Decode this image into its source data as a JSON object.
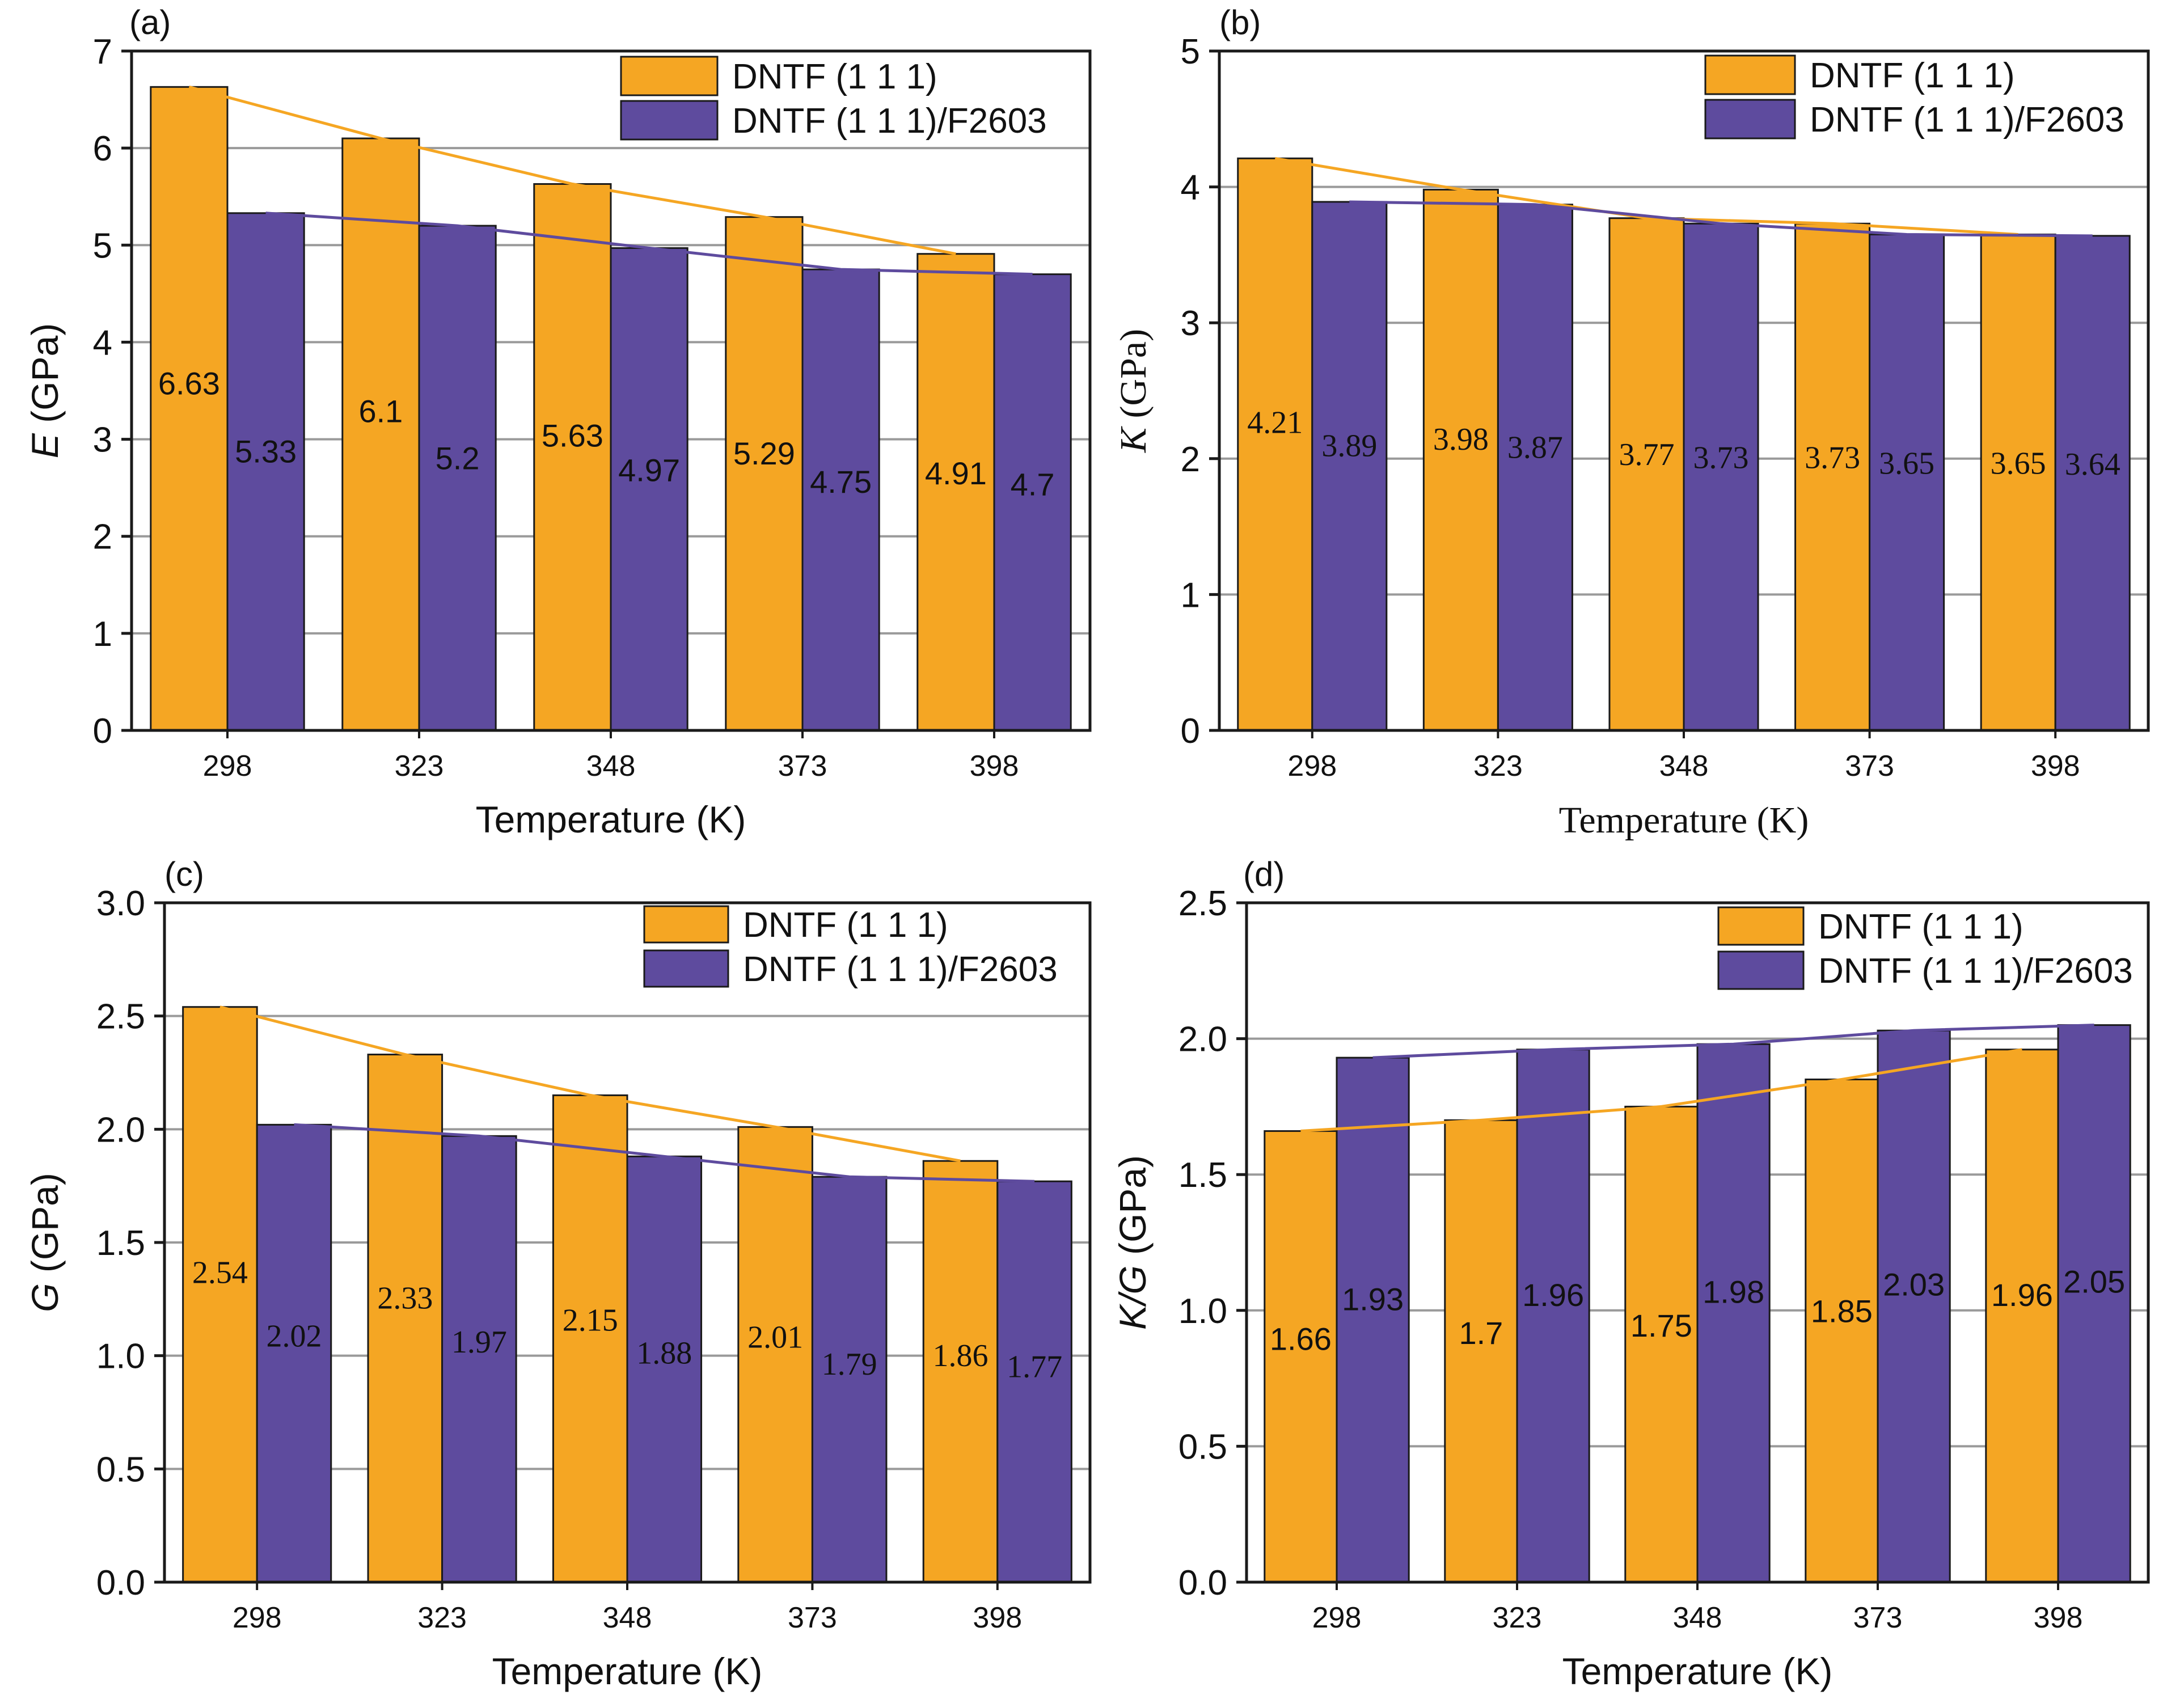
{
  "chart_data": [
    {
      "type": "bar",
      "panel_label": "(a)",
      "title": "",
      "categories": [
        "298",
        "323",
        "348",
        "373",
        "398"
      ],
      "series": [
        {
          "name": "DNTF (1 1 1)",
          "values": [
            6.63,
            6.1,
            5.63,
            5.29,
            4.91
          ],
          "labels": [
            "6.63",
            "6.1",
            "5.63",
            "5.29",
            "4.91"
          ],
          "color": "#F5A623"
        },
        {
          "name": "DNTF (1 1 1)/F2603",
          "values": [
            5.33,
            5.2,
            4.97,
            4.75,
            4.7
          ],
          "labels": [
            "5.33",
            "5.2",
            "4.97",
            "4.75",
            "4.7"
          ],
          "color": "#5E4B9E"
        }
      ],
      "ylabel_italic": "E",
      "ylabel_unit": " (GPa)",
      "xlabel": "Temperature (K)",
      "ylim": [
        0,
        7
      ],
      "yticks": [
        "0",
        "1",
        "2",
        "3",
        "4",
        "5",
        "6",
        "7"
      ],
      "grid": true,
      "legend": "top-right",
      "label_font": "sans"
    },
    {
      "type": "bar",
      "panel_label": "(b)",
      "title": "",
      "categories": [
        "298",
        "323",
        "348",
        "373",
        "398"
      ],
      "series": [
        {
          "name": "DNTF (1 1 1)",
          "values": [
            4.21,
            3.98,
            3.77,
            3.73,
            3.65
          ],
          "labels": [
            "4.21",
            "3.98",
            "3.77",
            "3.73",
            "3.65"
          ],
          "color": "#F5A623"
        },
        {
          "name": "DNTF (1 1 1)/F2603",
          "values": [
            3.89,
            3.87,
            3.73,
            3.65,
            3.64
          ],
          "labels": [
            "3.89",
            "3.87",
            "3.73",
            "3.65",
            "3.64"
          ],
          "color": "#5E4B9E"
        }
      ],
      "ylabel_italic": "K",
      "ylabel_unit": " (GPa)",
      "xlabel": "Temperature (K)",
      "ylim": [
        0,
        5
      ],
      "yticks": [
        "0",
        "1",
        "2",
        "3",
        "4",
        "5"
      ],
      "grid": true,
      "legend": "top-right",
      "label_font": "serif"
    },
    {
      "type": "bar",
      "panel_label": "(c)",
      "title": "",
      "categories": [
        "298",
        "323",
        "348",
        "373",
        "398"
      ],
      "series": [
        {
          "name": "DNTF (1 1 1)",
          "values": [
            2.54,
            2.33,
            2.15,
            2.01,
            1.86
          ],
          "labels": [
            "2.54",
            "2.33",
            "2.15",
            "2.01",
            "1.86"
          ],
          "color": "#F5A623"
        },
        {
          "name": "DNTF (1 1 1)/F2603",
          "values": [
            2.02,
            1.97,
            1.88,
            1.79,
            1.77
          ],
          "labels": [
            "2.02",
            "1.97",
            "1.88",
            "1.79",
            "1.77"
          ],
          "color": "#5E4B9E"
        }
      ],
      "ylabel_italic": "G",
      "ylabel_unit": " (GPa)",
      "xlabel": "Temperature (K)",
      "ylim": [
        0,
        3.0
      ],
      "yticks": [
        "0.0",
        "0.5",
        "1.0",
        "1.5",
        "2.0",
        "2.5",
        "3.0"
      ],
      "grid": true,
      "legend": "top-right",
      "label_font": "serif"
    },
    {
      "type": "bar",
      "panel_label": "(d)",
      "title": "",
      "categories": [
        "298",
        "323",
        "348",
        "373",
        "398"
      ],
      "series": [
        {
          "name": "DNTF (1 1 1)",
          "values": [
            1.66,
            1.7,
            1.75,
            1.85,
            1.96
          ],
          "labels": [
            "1.66",
            "1.7",
            "1.75",
            "1.85",
            "1.96"
          ],
          "color": "#F5A623"
        },
        {
          "name": "DNTF (1 1 1)/F2603",
          "values": [
            1.93,
            1.96,
            1.98,
            2.03,
            2.05
          ],
          "labels": [
            "1.93",
            "1.96",
            "1.98",
            "2.03",
            "2.05"
          ],
          "color": "#5E4B9E"
        }
      ],
      "ylabel_italic": "K/G",
      "ylabel_unit": " (GPa)",
      "xlabel": "Temperature (K)",
      "ylim": [
        0,
        2.5
      ],
      "yticks": [
        "0.0",
        "0.5",
        "1.0",
        "1.5",
        "2.0",
        "2.5"
      ],
      "grid": true,
      "legend": "top-right",
      "label_font": "sans"
    }
  ]
}
